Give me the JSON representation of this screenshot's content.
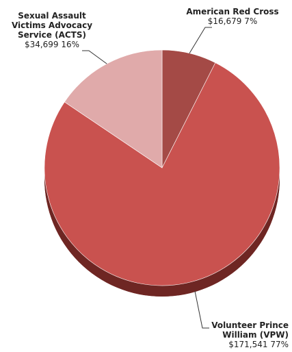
{
  "chart_data": {
    "type": "pie",
    "title": "",
    "total_label": "",
    "slices": [
      {
        "name": "American Red Cross",
        "amount": "$16,679",
        "percent_label": "7%",
        "value": 16679,
        "color": "#a44a46"
      },
      {
        "name": "Volunteer Prince William (VPW)",
        "amount": "$171,541",
        "percent_label": "77%",
        "value": 171541,
        "color": "#c9524f"
      },
      {
        "name": "Sexual Assault Victims Advocacy Service (ACTS)",
        "amount": "$34,699",
        "percent_label": "16%",
        "value": 34699,
        "color": "#e0aaaa"
      }
    ],
    "label_lines": {
      "arc": [
        "American Red Cross"
      ],
      "vpw": [
        "Volunteer Prince",
        "William (VPW)"
      ],
      "acts": [
        "Sexual Assault",
        "Victims Advocacy",
        "Service (ACTS)"
      ]
    },
    "label_values": {
      "arc": "$16,679 7%",
      "vpw": "$171,541 77%",
      "acts": "$34,699 16%"
    },
    "colors": {
      "edge_dark": "#6e2623",
      "edge_mid": "#8e3431",
      "leader": "#333333"
    }
  }
}
